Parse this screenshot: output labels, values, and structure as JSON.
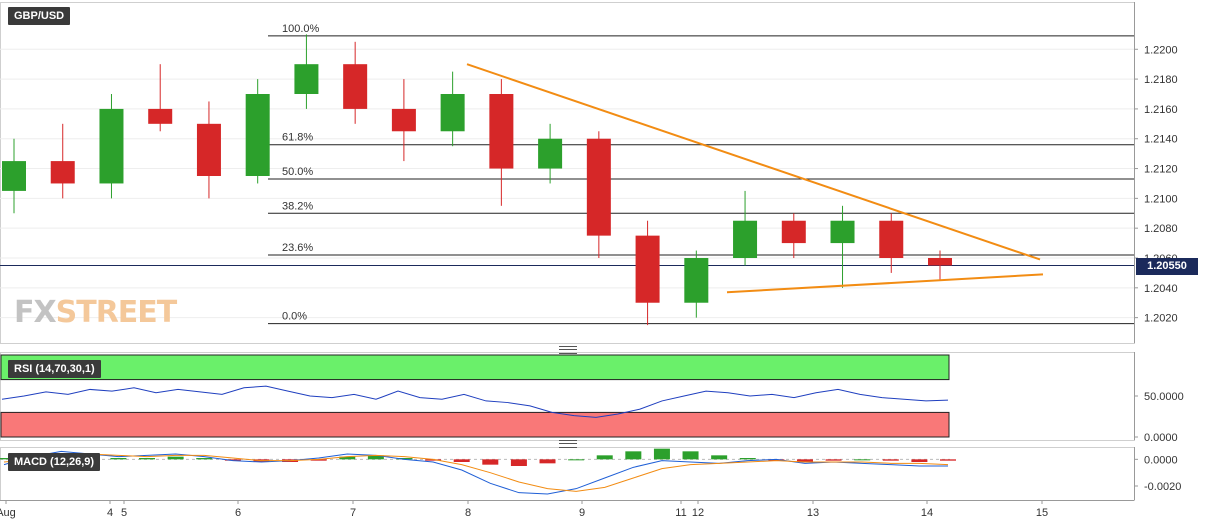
{
  "symbol": "GBP/USD",
  "logo": {
    "fx": "FX",
    "street": "STREET"
  },
  "current_price": "1.20550",
  "colors": {
    "bull": "#2ca02c",
    "bear": "#d62728",
    "trendline": "#f28c13",
    "rsi": "#1f3fbf",
    "rsi_overbought": "#6af06a",
    "rsi_oversold": "#f97878",
    "macd": "#1f5fd6",
    "signal": "#f28c13"
  },
  "x_axis_labels": [
    "Aug",
    "4",
    "5",
    "6",
    "7",
    "8",
    "9",
    "11",
    "12",
    "13",
    "14",
    "15"
  ],
  "chart_data": [
    {
      "type": "candlestick",
      "title": "GBP/USD",
      "y_ticks": [
        "1.2020",
        "1.2040",
        "1.2060",
        "1.2080",
        "1.2100",
        "1.2120",
        "1.2140",
        "1.2160",
        "1.2180",
        "1.2200"
      ],
      "ylim": [
        1.2005,
        1.2225
      ],
      "current_price": 1.2055,
      "fibonacci": [
        {
          "label": "100.0%",
          "value": 1.2209
        },
        {
          "label": "61.8%",
          "value": 1.2136
        },
        {
          "label": "50.0%",
          "value": 1.2113
        },
        {
          "label": "38.2%",
          "value": 1.209
        },
        {
          "label": "23.6%",
          "value": 1.2062
        },
        {
          "label": "0.0%",
          "value": 1.2016
        }
      ],
      "trendlines": [
        {
          "name": "resistance",
          "from": [
            1.219
          ],
          "to": [
            1.2059
          ]
        },
        {
          "name": "support",
          "from": [
            1.2037
          ],
          "to": [
            1.2049
          ]
        }
      ],
      "candles": [
        {
          "session": "Aug",
          "open": 1.2105,
          "high": 1.214,
          "low": 1.209,
          "close": 1.2125
        },
        {
          "session": "Aug",
          "open": 1.2125,
          "high": 1.215,
          "low": 1.21,
          "close": 1.211
        },
        {
          "session": "4",
          "open": 1.211,
          "high": 1.217,
          "low": 1.21,
          "close": 1.216
        },
        {
          "session": "5",
          "open": 1.216,
          "high": 1.219,
          "low": 1.2145,
          "close": 1.215
        },
        {
          "session": "5",
          "open": 1.215,
          "high": 1.2165,
          "low": 1.21,
          "close": 1.2115
        },
        {
          "session": "6",
          "open": 1.2115,
          "high": 1.218,
          "low": 1.211,
          "close": 1.217
        },
        {
          "session": "6",
          "open": 1.217,
          "high": 1.221,
          "low": 1.216,
          "close": 1.219
        },
        {
          "session": "7",
          "open": 1.219,
          "high": 1.2205,
          "low": 1.215,
          "close": 1.216
        },
        {
          "session": "7",
          "open": 1.216,
          "high": 1.218,
          "low": 1.2125,
          "close": 1.2145
        },
        {
          "session": "8",
          "open": 1.2145,
          "high": 1.2185,
          "low": 1.2135,
          "close": 1.217
        },
        {
          "session": "8",
          "open": 1.217,
          "high": 1.218,
          "low": 1.2095,
          "close": 1.212
        },
        {
          "session": "9",
          "open": 1.212,
          "high": 1.215,
          "low": 1.211,
          "close": 1.214
        },
        {
          "session": "9",
          "open": 1.214,
          "high": 1.2145,
          "low": 1.206,
          "close": 1.2075
        },
        {
          "session": "11",
          "open": 1.2075,
          "high": 1.2085,
          "low": 1.2015,
          "close": 1.203
        },
        {
          "session": "11",
          "open": 1.203,
          "high": 1.2065,
          "low": 1.202,
          "close": 1.206
        },
        {
          "session": "12",
          "open": 1.206,
          "high": 1.2105,
          "low": 1.2055,
          "close": 1.2085
        },
        {
          "session": "12",
          "open": 1.2085,
          "high": 1.209,
          "low": 1.206,
          "close": 1.207
        },
        {
          "session": "13",
          "open": 1.207,
          "high": 1.2095,
          "low": 1.204,
          "close": 1.2085
        },
        {
          "session": "13",
          "open": 1.2085,
          "high": 1.209,
          "low": 1.205,
          "close": 1.206
        },
        {
          "session": "14",
          "open": 1.206,
          "high": 1.2065,
          "low": 1.2045,
          "close": 1.2055
        }
      ]
    },
    {
      "type": "line",
      "title": "RSI (14,70,30,1)",
      "y_ticks": [
        "0.0000",
        "50.0000"
      ],
      "ylim": [
        0,
        100
      ],
      "bands": {
        "overbought": 70,
        "oversold": 30
      },
      "series": [
        {
          "values": [
            46,
            50,
            55,
            52,
            58,
            56,
            60,
            54,
            58,
            55,
            52,
            60,
            62,
            56,
            50,
            48,
            52,
            46,
            56,
            48,
            46,
            52,
            44,
            42,
            38,
            30,
            26,
            24,
            28,
            34,
            44,
            50,
            56,
            54,
            50,
            52,
            48,
            54,
            58,
            52,
            48,
            46,
            44,
            45
          ]
        }
      ]
    },
    {
      "type": "bar",
      "title": "MACD (12,26,9)",
      "y_ticks": [
        "0.0000",
        "-0.0020"
      ],
      "ylim": [
        -0.0029,
        0.0007
      ],
      "series": [
        {
          "name": "histogram",
          "values": [
            0.0001,
            0.0002,
            0.0003,
            0.0002,
            0.0001,
            0.0001,
            0.0002,
            0.0001,
            -0.0001,
            -0.0002,
            -0.0002,
            -0.0001,
            0.0002,
            0.0003,
            0.0001,
            -0.0001,
            -0.0002,
            -0.0004,
            -0.0005,
            -0.0003,
            0.0,
            0.0003,
            0.0006,
            0.0008,
            0.0006,
            0.0003,
            0.0001,
            -0.0001,
            -0.0002,
            -0.0001,
            0.0,
            -0.0001,
            -0.0002,
            -0.0001
          ]
        },
        {
          "name": "macd",
          "values": [
            -0.0004,
            0.0002,
            0.0006,
            0.0004,
            0.0002,
            0.0003,
            0.0004,
            0.0002,
            -0.0001,
            -0.0002,
            -0.0001,
            0.0001,
            0.0004,
            0.0003,
            0.0,
            -0.0002,
            -0.0008,
            -0.0018,
            -0.0025,
            -0.0026,
            -0.0022,
            -0.0014,
            -0.0006,
            -0.0001,
            -0.0002,
            -0.0003,
            -0.0001,
            0.0,
            -0.0003,
            -0.0002,
            -0.0003,
            -0.0004,
            -0.0005,
            -0.0005
          ]
        },
        {
          "name": "signal",
          "values": [
            -0.0002,
            0.0,
            0.0003,
            0.0004,
            0.0003,
            0.0002,
            0.0003,
            0.0003,
            0.0001,
            -0.0001,
            -0.0001,
            0.0,
            0.0002,
            0.0003,
            0.0002,
            0.0,
            -0.0004,
            -0.001,
            -0.0017,
            -0.0022,
            -0.0024,
            -0.0021,
            -0.0014,
            -0.0007,
            -0.0004,
            -0.0003,
            -0.0002,
            -0.0001,
            -0.0002,
            -0.0002,
            -0.0002,
            -0.0003,
            -0.0003,
            -0.0004
          ]
        }
      ]
    }
  ]
}
